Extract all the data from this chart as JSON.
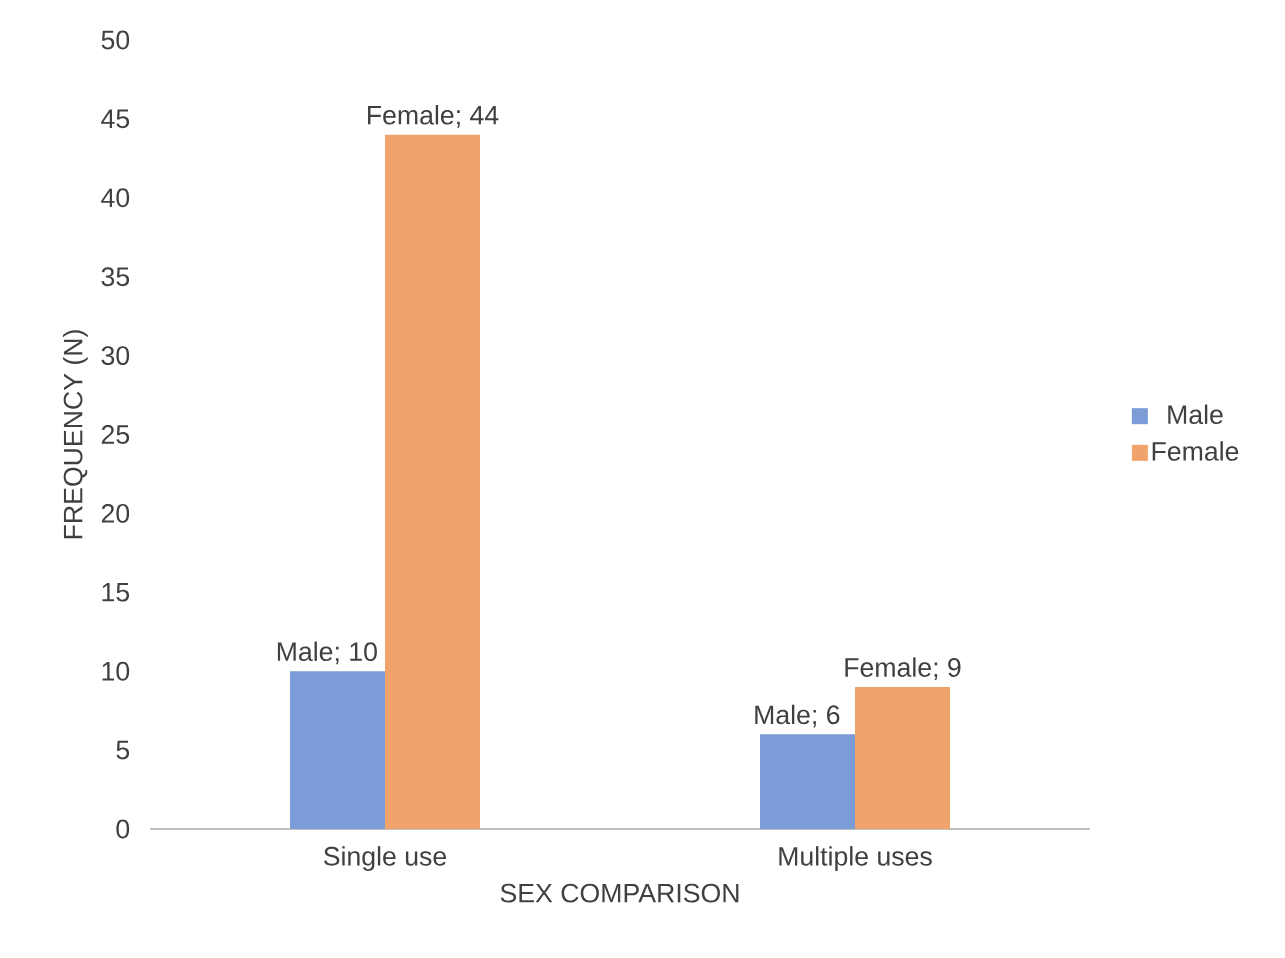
{
  "chart_data": {
    "type": "bar",
    "xlabel": "SEX COMPARISON",
    "ylabel": "FREQUENCY (N)",
    "categories": [
      "Single use",
      "Multiple uses"
    ],
    "series": [
      {
        "name": "Male",
        "color": "#7b9cd6",
        "values": [
          10,
          6
        ],
        "value_labels": [
          "Male; 10",
          "Male; 6"
        ]
      },
      {
        "name": "Female",
        "color": "#f0a46c",
        "values": [
          44,
          9
        ],
        "value_labels": [
          "Female; 44",
          "Female; 9"
        ]
      }
    ],
    "ylim": [
      0,
      50
    ],
    "yticks": [
      0,
      5,
      10,
      15,
      20,
      25,
      30,
      35,
      40,
      45,
      50
    ],
    "legend": "right"
  }
}
